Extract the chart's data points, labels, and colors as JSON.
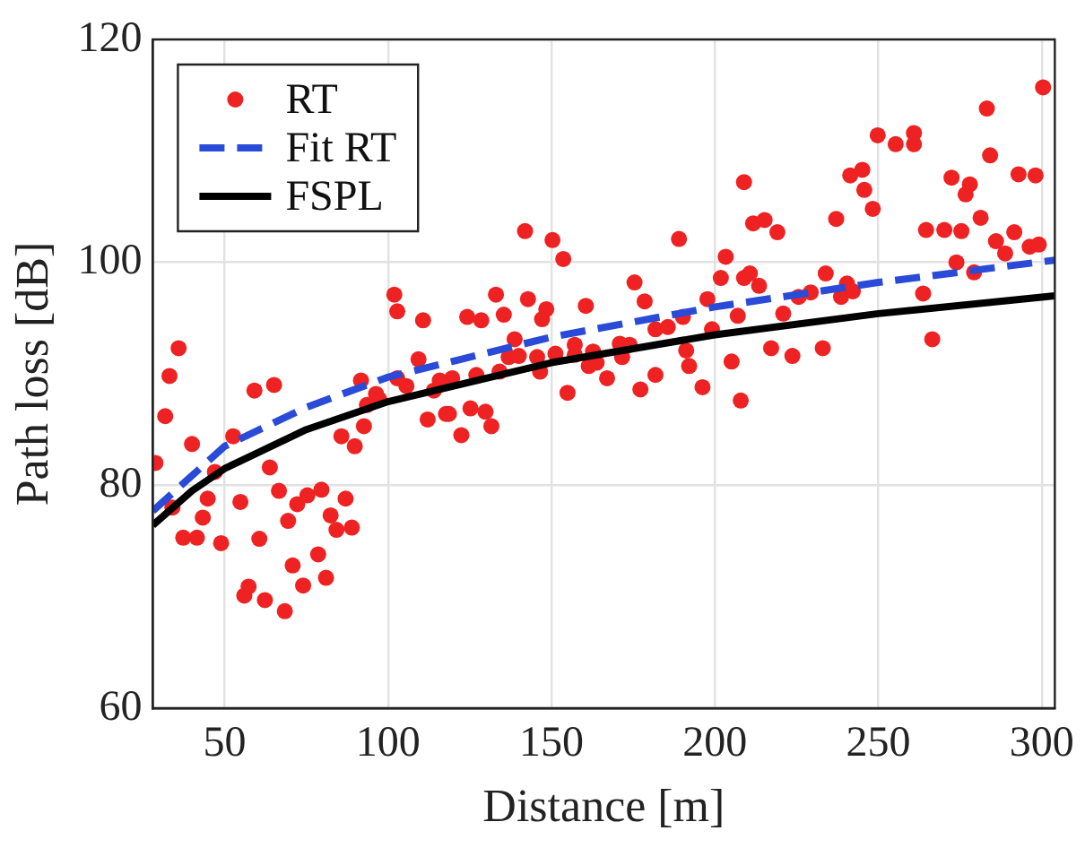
{
  "chart_data": {
    "type": "scatter",
    "xlabel": "Distance [m]",
    "ylabel": "Path loss [dB]",
    "xlim": [
      28,
      304
    ],
    "ylim": [
      60,
      120
    ],
    "xticks": [
      50,
      100,
      150,
      200,
      250,
      300
    ],
    "yticks": [
      60,
      80,
      100,
      120
    ],
    "grid": true,
    "legend": "top left",
    "marker": "circle",
    "series": [
      {
        "name": "RT",
        "color": "#ee2222",
        "x": [
          28.8,
          31.8,
          33.1,
          35.9,
          34.0,
          37.3,
          40.0,
          41.5,
          43.3,
          44.8,
          47.0,
          48.9,
          52.6,
          54.8,
          56.0,
          57.3,
          59.1,
          60.6,
          62.3,
          63.8,
          65.1,
          66.6,
          68.4,
          69.4,
          70.8,
          72.2,
          74.0,
          75.3,
          78.6,
          79.6,
          81.0,
          82.4,
          84.2,
          85.7,
          87.0,
          88.9,
          89.8,
          91.7,
          92.6,
          93.5,
          96.3,
          97.3,
          101.9,
          102.8,
          102.8,
          105.6,
          109.3,
          110.7,
          112.1,
          114.0,
          117.7,
          115.8,
          118.6,
          119.6,
          122.4,
          124.2,
          125.2,
          127.0,
          128.5,
          129.8,
          131.6,
          133.0,
          134.1,
          135.4,
          136.9,
          138.7,
          140.0,
          141.9,
          142.8,
          145.6,
          146.5,
          147.1,
          148.4,
          150.3,
          151.2,
          153.6,
          154.9,
          157.1,
          157.1,
          160.5,
          161.4,
          162.7,
          163.8,
          167.0,
          170.9,
          171.6,
          173.9,
          175.4,
          177.2,
          178.5,
          181.8,
          181.8,
          185.6,
          189.0,
          190.2,
          191.2,
          192.1,
          196.2,
          197.7,
          199.1,
          201.8,
          203.3,
          205.1,
          207.0,
          207.9,
          208.9,
          208.9,
          210.7,
          211.7,
          213.5,
          215.2,
          217.2,
          219.1,
          220.9,
          223.7,
          225.6,
          229.3,
          233.0,
          233.9,
          237.1,
          238.6,
          240.4,
          241.4,
          242.2,
          245.1,
          245.7,
          248.3,
          249.8,
          255.3,
          260.9,
          260.9,
          263.7,
          264.6,
          266.5,
          270.2,
          272.4,
          273.9,
          275.4,
          276.7,
          278.0,
          279.3,
          281.3,
          283.2,
          284.2,
          286.0,
          288.8,
          291.6,
          292.9,
          296.3,
          298.1,
          299.1,
          300.4
        ],
        "values": [
          82.0,
          86.2,
          89.8,
          92.3,
          78.0,
          75.3,
          83.7,
          75.3,
          77.1,
          78.8,
          81.2,
          74.8,
          84.4,
          78.5,
          70.1,
          70.9,
          88.5,
          75.2,
          69.7,
          81.6,
          89.0,
          79.5,
          68.7,
          76.8,
          72.8,
          78.3,
          71.0,
          79.1,
          73.8,
          79.6,
          71.7,
          77.3,
          76.0,
          84.4,
          78.8,
          76.2,
          83.5,
          89.4,
          85.3,
          87.2,
          88.2,
          87.7,
          97.1,
          95.6,
          89.6,
          88.9,
          91.3,
          94.8,
          85.9,
          88.5,
          86.4,
          89.4,
          86.4,
          89.6,
          84.5,
          95.1,
          86.9,
          89.9,
          94.8,
          86.6,
          85.3,
          97.1,
          90.2,
          95.3,
          91.5,
          93.1,
          91.6,
          102.8,
          96.7,
          91.5,
          90.2,
          94.9,
          95.8,
          102.0,
          91.8,
          100.3,
          88.3,
          92.6,
          91.7,
          96.1,
          90.7,
          92.0,
          91.0,
          89.6,
          92.7,
          91.5,
          92.6,
          98.2,
          88.6,
          96.5,
          94.0,
          89.9,
          94.2,
          102.1,
          95.1,
          92.1,
          90.7,
          88.8,
          96.7,
          94.0,
          98.6,
          100.5,
          91.1,
          95.2,
          87.6,
          98.6,
          107.2,
          99.0,
          103.5,
          97.9,
          103.8,
          92.3,
          102.7,
          95.4,
          91.6,
          96.9,
          97.3,
          92.3,
          99.0,
          103.9,
          96.9,
          98.1,
          107.8,
          97.4,
          108.3,
          106.5,
          104.8,
          111.4,
          110.6,
          111.6,
          110.6,
          97.2,
          102.9,
          93.1,
          102.9,
          107.6,
          100.0,
          102.8,
          106.1,
          107.0,
          99.1,
          104.0,
          113.8,
          109.6,
          101.9,
          100.8,
          102.7,
          107.9,
          101.4,
          107.8,
          101.6,
          115.7
        ]
      },
      {
        "name": "Fit RT",
        "type": "line",
        "color": "#2a4bd7",
        "line_style": "dashed",
        "marker": "none",
        "x": [
          28,
          50,
          75,
          100,
          150,
          200,
          250,
          304
        ],
        "values": [
          77.7,
          83.5,
          87.0,
          89.7,
          93.3,
          96.0,
          98.2,
          100.2
        ]
      },
      {
        "name": "FSPL",
        "type": "line",
        "color": "#000000",
        "line_style": "solid",
        "marker": "none",
        "x": [
          28,
          40,
          50,
          75,
          100,
          150,
          200,
          250,
          304
        ],
        "values": [
          76.4,
          79.5,
          81.5,
          85.0,
          87.5,
          91.0,
          93.5,
          95.4,
          97.0
        ]
      }
    ]
  }
}
